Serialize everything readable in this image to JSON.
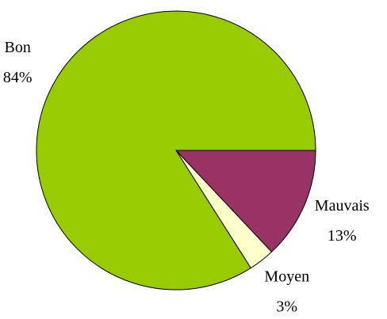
{
  "chart_data": {
    "type": "pie",
    "categories": [
      "Mauvais",
      "Moyen",
      "Bon"
    ],
    "values": [
      13,
      3,
      84
    ],
    "value_labels": [
      "13%",
      "3%",
      "84%"
    ],
    "colors": [
      "#993366",
      "#ffffcc",
      "#99cc00"
    ]
  }
}
